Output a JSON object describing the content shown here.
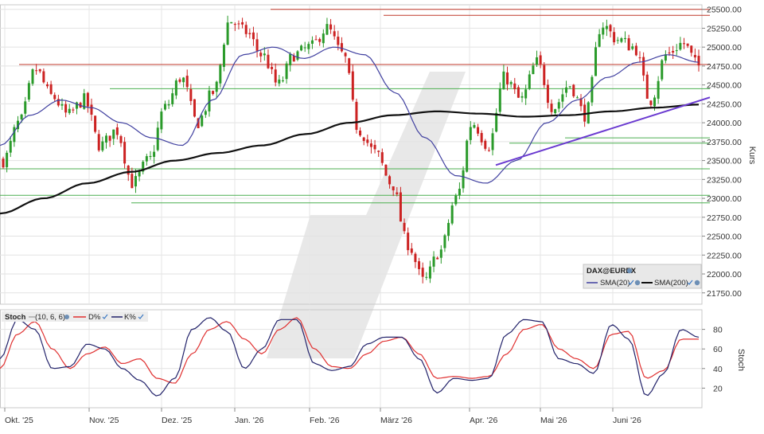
{
  "chart_data": [
    {
      "type": "candlestick",
      "title": "",
      "ylabel": "Kurs",
      "ylim": [
        21600,
        25560
      ],
      "y_ticks": [
        "21750.00",
        "22000.00",
        "22250.00",
        "22500.00",
        "22750.00",
        "23000.00",
        "23250.00",
        "23500.00",
        "23750.00",
        "24000.00",
        "24250.00",
        "24500.00",
        "24750.00",
        "25000.00",
        "25250.00",
        "25500.00"
      ],
      "x_ticks": [
        "Okt. '25",
        "Nov. '25",
        "Dez. '25",
        "Jan. '26",
        "Feb. '26",
        "März '26",
        "Apr. '26",
        "Mai '26",
        "Juni '26"
      ],
      "grid": true,
      "legend": {
        "position": "bottom-right",
        "instrument": "DAX@EUREX",
        "items": [
          {
            "name": "SMA(20)",
            "color": "#4040a0"
          },
          {
            "name": "SMA(200)",
            "color": "#111111"
          }
        ]
      },
      "colors": {
        "up": "#2a9a2a",
        "down": "#cc2222",
        "sma20": "#4040a0",
        "sma200": "#111111",
        "trend": "#6a3ad0",
        "resistance": "#c0392b",
        "support": "#4caf50"
      },
      "resistance_levels": [
        25500,
        25420,
        24770
      ],
      "support_levels": [
        24450,
        23800,
        23730,
        23390,
        23040,
        22940
      ],
      "trendline": {
        "from": [
          "Ende März '26",
          23440
        ],
        "to": [
          "Ende Juni '26",
          24230
        ]
      },
      "close_path": [
        23500,
        24000,
        24700,
        24350,
        24100,
        24300,
        23700,
        23900,
        23200,
        23500,
        24200,
        24600,
        24000,
        24400,
        25350,
        25200,
        24900,
        24500,
        24900,
        25000,
        25250,
        24900,
        23900,
        23600,
        23200,
        22400,
        21900,
        22300,
        23000,
        24000,
        23700,
        24600,
        24300,
        24800,
        24200,
        24500,
        24100,
        25300,
        25100,
        25000,
        24300,
        24900,
        25050,
        24750
      ],
      "sma200_path": [
        22800,
        23000,
        23200,
        23350,
        23500,
        23600,
        23700,
        23850,
        24000,
        24100,
        24150,
        24120,
        24080,
        24100,
        24150,
        24200,
        24240
      ],
      "sma20_path": [
        23700,
        24100,
        24300,
        24200,
        24000,
        23800,
        23700,
        24300,
        24900,
        25000,
        24850,
        25000,
        24900,
        24400,
        23800,
        23300,
        23200,
        23500,
        24000,
        24300,
        24600,
        24800,
        24900,
        24800
      ]
    },
    {
      "type": "line",
      "title": "",
      "label": "Stoch",
      "params": "(10, 6, 6)",
      "ylabel": "Stoch",
      "ylim": [
        0,
        100
      ],
      "y_ticks": [
        "20",
        "40",
        "60",
        "80"
      ],
      "series": [
        {
          "name": "D%",
          "color": "#e03030",
          "values": [
            40,
            75,
            88,
            60,
            40,
            55,
            62,
            45,
            50,
            30,
            25,
            55,
            80,
            88,
            70,
            55,
            80,
            92,
            60,
            42,
            40,
            55,
            68,
            72,
            55,
            30,
            32,
            30,
            32,
            55,
            80,
            85,
            60,
            50,
            40,
            75,
            78,
            30,
            38,
            70,
            70
          ]
        },
        {
          "name": "K%",
          "color": "#22226a",
          "values": [
            50,
            90,
            80,
            40,
            42,
            65,
            60,
            40,
            28,
            12,
            30,
            80,
            92,
            78,
            40,
            60,
            90,
            90,
            45,
            38,
            42,
            65,
            72,
            72,
            50,
            15,
            30,
            28,
            30,
            75,
            90,
            88,
            50,
            45,
            35,
            85,
            70,
            12,
            35,
            80,
            72
          ]
        }
      ]
    }
  ]
}
